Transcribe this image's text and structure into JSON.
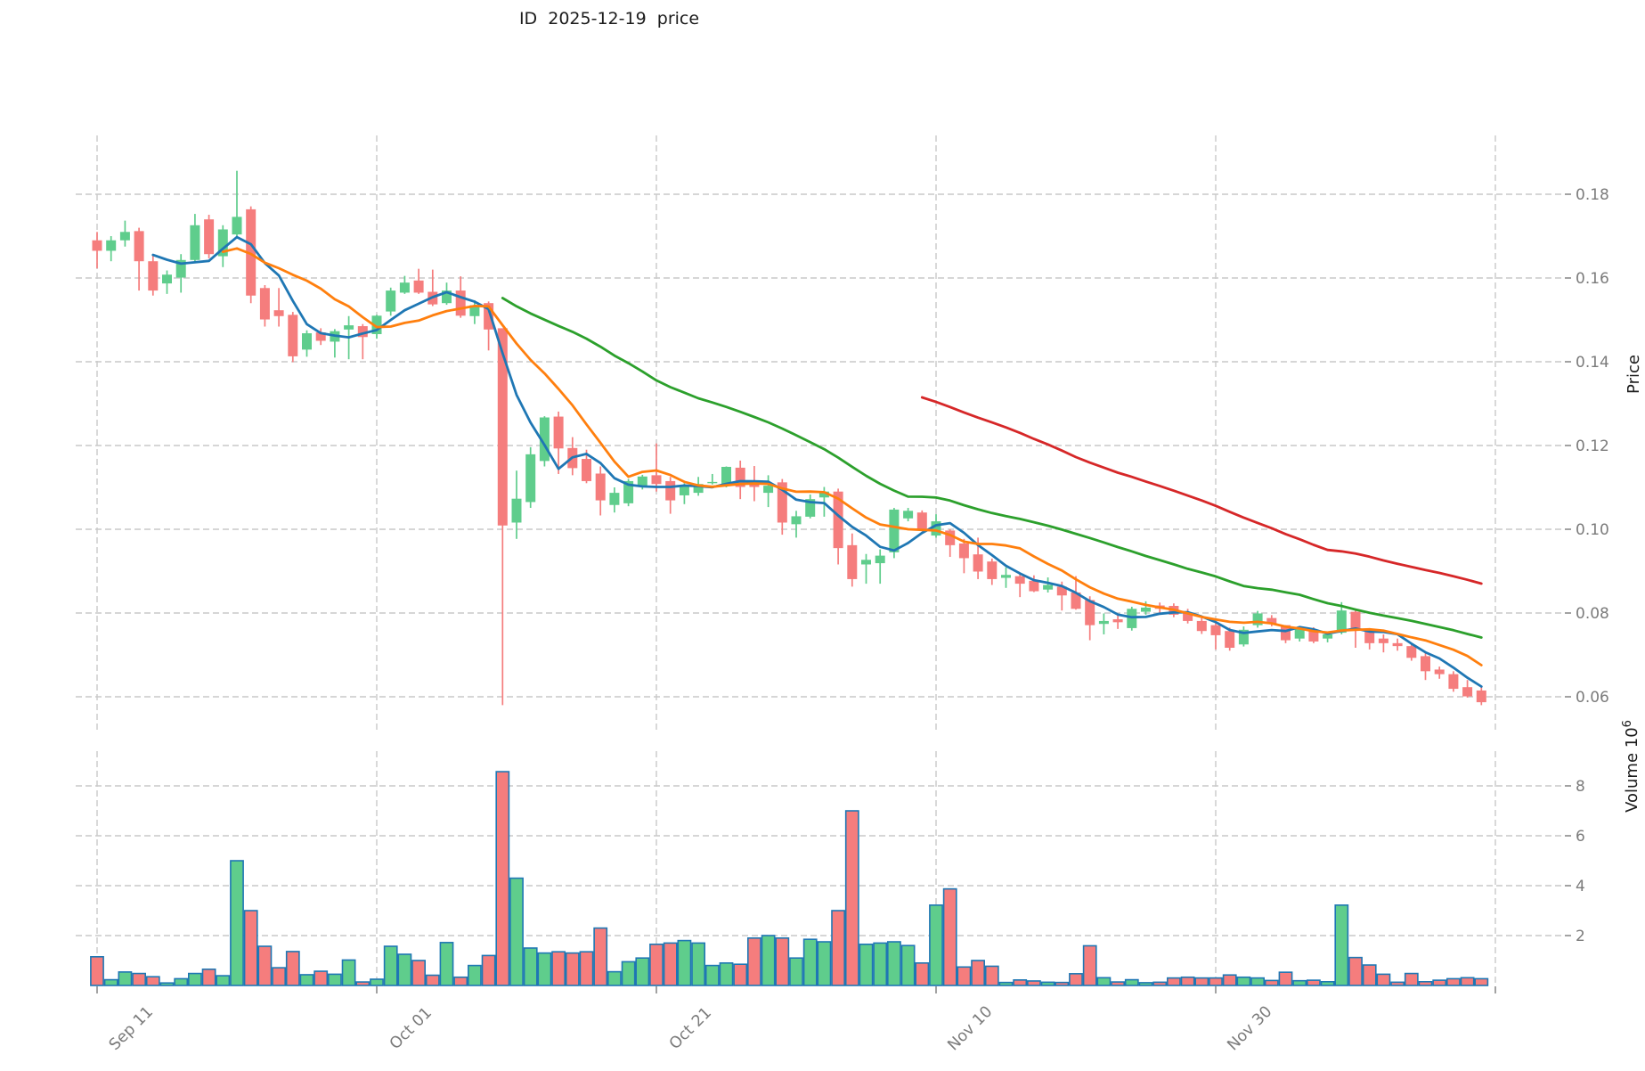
{
  "title": "ID  2025-12-19  price",
  "chart_data": {
    "type": "candlestick",
    "title": "ID  2025-12-19  price",
    "ylabel_price": "Price",
    "ylabel_volume": {
      "text": "Volume",
      "base": "10",
      "exponent": "6"
    },
    "price_ticks": [
      0.18,
      0.16,
      0.14,
      0.12,
      0.1,
      0.08,
      0.06
    ],
    "volume_ticks": [
      2,
      4,
      6,
      8
    ],
    "x_ticks": [
      {
        "index": 0,
        "label": "Sep 11"
      },
      {
        "index": 20,
        "label": "Oct 01"
      },
      {
        "index": 40,
        "label": "Oct 21"
      },
      {
        "index": 60,
        "label": "Nov 10"
      },
      {
        "index": 80,
        "label": "Nov 30"
      },
      {
        "index": 100,
        "label": ""
      }
    ],
    "grid": true,
    "legend_position": "none",
    "colors": {
      "up": "#5fcd8c",
      "down": "#f57d7d",
      "volume_edge": "#1f77b4",
      "grid": "#c9c9c9",
      "tick_label": "#7b7b7b",
      "text": "#1c1c1c"
    },
    "moving_averages": [
      {
        "name": "MA5",
        "window": 5,
        "color": "#1f77b4"
      },
      {
        "name": "MA10",
        "window": 10,
        "color": "#ff7f0e"
      },
      {
        "name": "MA30",
        "window": 30,
        "color": "#2ca02c"
      },
      {
        "name": "MA60",
        "window": 60,
        "color": "#d62728"
      }
    ],
    "price_range": [
      0.05,
      0.195
    ],
    "volume_range_millions": [
      0,
      9.4
    ],
    "dates": [
      "Sep 11",
      "Sep 12",
      "Sep 13",
      "Sep 14",
      "Sep 15",
      "Sep 16",
      "Sep 17",
      "Sep 18",
      "Sep 19",
      "Sep 20",
      "Sep 21",
      "Sep 22",
      "Sep 23",
      "Sep 24",
      "Sep 25",
      "Sep 26",
      "Sep 27",
      "Sep 28",
      "Sep 29",
      "Sep 30",
      "Oct 01",
      "Oct 02",
      "Oct 03",
      "Oct 04",
      "Oct 05",
      "Oct 06",
      "Oct 07",
      "Oct 08",
      "Oct 09",
      "Oct 10",
      "Oct 11",
      "Oct 12",
      "Oct 13",
      "Oct 14",
      "Oct 15",
      "Oct 16",
      "Oct 17",
      "Oct 18",
      "Oct 19",
      "Oct 20",
      "Oct 21",
      "Oct 22",
      "Oct 23",
      "Oct 24",
      "Oct 25",
      "Oct 26",
      "Oct 27",
      "Oct 28",
      "Oct 29",
      "Oct 30",
      "Oct 31",
      "Nov 01",
      "Nov 02",
      "Nov 03",
      "Nov 04",
      "Nov 05",
      "Nov 06",
      "Nov 07",
      "Nov 08",
      "Nov 09",
      "Nov 10",
      "Nov 11",
      "Nov 12",
      "Nov 13",
      "Nov 14",
      "Nov 15",
      "Nov 16",
      "Nov 17",
      "Nov 18",
      "Nov 19",
      "Nov 20",
      "Nov 21",
      "Nov 22",
      "Nov 23",
      "Nov 24",
      "Nov 25",
      "Nov 26",
      "Nov 27",
      "Nov 28",
      "Nov 29",
      "Nov 30",
      "Dec 01",
      "Dec 02",
      "Dec 03",
      "Dec 04",
      "Dec 05",
      "Dec 06",
      "Dec 07",
      "Dec 08",
      "Dec 09",
      "Dec 10",
      "Dec 11",
      "Dec 12",
      "Dec 13",
      "Dec 14",
      "Dec 15",
      "Dec 16",
      "Dec 17",
      "Dec 18",
      "Dec 19"
    ],
    "ohlcv": [
      [
        0.169,
        0.171,
        0.1623,
        0.1665,
        1.15
      ],
      [
        0.1665,
        0.17,
        0.164,
        0.169,
        0.23
      ],
      [
        0.169,
        0.1737,
        0.1675,
        0.171,
        0.54
      ],
      [
        0.1712,
        0.172,
        0.157,
        0.164,
        0.48
      ],
      [
        0.164,
        0.1654,
        0.1558,
        0.157,
        0.35
      ],
      [
        0.1587,
        0.1618,
        0.1562,
        0.1608,
        0.1
      ],
      [
        0.1601,
        0.1657,
        0.1565,
        0.1643,
        0.27
      ],
      [
        0.1643,
        0.1753,
        0.1636,
        0.1726,
        0.48
      ],
      [
        0.174,
        0.1751,
        0.1647,
        0.1657,
        0.65
      ],
      [
        0.1652,
        0.1726,
        0.1626,
        0.1716,
        0.39
      ],
      [
        0.1704,
        0.1856,
        0.1696,
        0.1746,
        5.0
      ],
      [
        0.1764,
        0.1771,
        0.154,
        0.1558,
        3.0
      ],
      [
        0.1576,
        0.1583,
        0.1484,
        0.1501,
        1.57
      ],
      [
        0.1523,
        0.1576,
        0.1484,
        0.1509,
        0.71
      ],
      [
        0.1512,
        0.1519,
        0.1399,
        0.1413,
        1.36
      ],
      [
        0.1429,
        0.1475,
        0.1412,
        0.1468,
        0.43
      ],
      [
        0.147,
        0.148,
        0.144,
        0.145,
        0.57
      ],
      [
        0.1448,
        0.1478,
        0.141,
        0.1473,
        0.45
      ],
      [
        0.1477,
        0.1509,
        0.1406,
        0.1487,
        1.02
      ],
      [
        0.1485,
        0.149,
        0.1406,
        0.1459,
        0.14
      ],
      [
        0.1466,
        0.1512,
        0.1455,
        0.151,
        0.25
      ],
      [
        0.152,
        0.1577,
        0.151,
        0.157,
        1.57
      ],
      [
        0.1565,
        0.1605,
        0.1562,
        0.1589,
        1.25
      ],
      [
        0.1594,
        0.1622,
        0.1562,
        0.1565,
        1.0
      ],
      [
        0.1567,
        0.162,
        0.1533,
        0.1537,
        0.41
      ],
      [
        0.154,
        0.1589,
        0.1536,
        0.157,
        1.72
      ],
      [
        0.157,
        0.1604,
        0.1505,
        0.151,
        0.33
      ],
      [
        0.1509,
        0.1547,
        0.149,
        0.1535,
        0.8
      ],
      [
        0.154,
        0.1544,
        0.1427,
        0.1477,
        1.2
      ],
      [
        0.148,
        0.148,
        0.058,
        0.1009,
        8.57
      ],
      [
        0.1016,
        0.114,
        0.0977,
        0.1073,
        4.3
      ],
      [
        0.1065,
        0.1196,
        0.1051,
        0.1179,
        1.5
      ],
      [
        0.1163,
        0.127,
        0.115,
        0.1267,
        1.3
      ],
      [
        0.1269,
        0.1281,
        0.1132,
        0.1193,
        1.35
      ],
      [
        0.1194,
        0.122,
        0.1129,
        0.1146,
        1.3
      ],
      [
        0.1168,
        0.119,
        0.111,
        0.1115,
        1.35
      ],
      [
        0.1133,
        0.115,
        0.1033,
        0.1069,
        2.3
      ],
      [
        0.1058,
        0.11,
        0.104,
        0.1087,
        0.55
      ],
      [
        0.1062,
        0.112,
        0.1055,
        0.1115,
        0.95
      ],
      [
        0.1104,
        0.113,
        0.1095,
        0.1126,
        1.1
      ],
      [
        0.1129,
        0.1205,
        0.109,
        0.1108,
        1.65
      ],
      [
        0.1115,
        0.1125,
        0.1037,
        0.1069,
        1.7
      ],
      [
        0.1081,
        0.111,
        0.106,
        0.1104,
        1.8
      ],
      [
        0.1087,
        0.1125,
        0.108,
        0.1108,
        1.7
      ],
      [
        0.111,
        0.1132,
        0.1107,
        0.1113,
        0.8
      ],
      [
        0.1104,
        0.115,
        0.11,
        0.1149,
        0.9
      ],
      [
        0.1147,
        0.1164,
        0.1072,
        0.1101,
        0.85
      ],
      [
        0.1115,
        0.1151,
        0.1067,
        0.1101,
        1.9
      ],
      [
        0.1087,
        0.1129,
        0.1053,
        0.1104,
        2.0
      ],
      [
        0.1112,
        0.112,
        0.0987,
        0.1016,
        1.9
      ],
      [
        0.1012,
        0.1044,
        0.098,
        0.1031,
        1.1
      ],
      [
        0.103,
        0.1083,
        0.1026,
        0.1072,
        1.85
      ],
      [
        0.1076,
        0.1101,
        0.103,
        0.109,
        1.75
      ],
      [
        0.109,
        0.1097,
        0.0916,
        0.0955,
        3.0
      ],
      [
        0.0962,
        0.099,
        0.0863,
        0.0881,
        7.0
      ],
      [
        0.0916,
        0.0941,
        0.087,
        0.0927,
        1.65
      ],
      [
        0.0919,
        0.0952,
        0.087,
        0.0937,
        1.7
      ],
      [
        0.0945,
        0.1051,
        0.0931,
        0.1047,
        1.75
      ],
      [
        0.1026,
        0.1051,
        0.1019,
        0.1044,
        1.6
      ],
      [
        0.104,
        0.1045,
        0.0995,
        0.1001,
        0.9
      ],
      [
        0.0985,
        0.1036,
        0.098,
        0.1019,
        3.22
      ],
      [
        0.0997,
        0.1,
        0.0934,
        0.0962,
        3.87
      ],
      [
        0.0966,
        0.0977,
        0.0895,
        0.0931,
        0.74
      ],
      [
        0.094,
        0.098,
        0.0881,
        0.0899,
        1.0
      ],
      [
        0.0923,
        0.093,
        0.0867,
        0.0881,
        0.77
      ],
      [
        0.0884,
        0.0909,
        0.086,
        0.0891,
        0.12
      ],
      [
        0.0888,
        0.0895,
        0.0838,
        0.087,
        0.22
      ],
      [
        0.0877,
        0.089,
        0.085,
        0.0852,
        0.18
      ],
      [
        0.0856,
        0.0885,
        0.0849,
        0.0867,
        0.13
      ],
      [
        0.0863,
        0.0875,
        0.0806,
        0.0842,
        0.12
      ],
      [
        0.0849,
        0.0888,
        0.0808,
        0.081,
        0.47
      ],
      [
        0.0831,
        0.084,
        0.0735,
        0.0771,
        1.59
      ],
      [
        0.0774,
        0.0799,
        0.0749,
        0.0781,
        0.31
      ],
      [
        0.0785,
        0.0795,
        0.0762,
        0.0778,
        0.14
      ],
      [
        0.0764,
        0.0815,
        0.0758,
        0.081,
        0.23
      ],
      [
        0.0803,
        0.0828,
        0.0796,
        0.0813,
        0.11
      ],
      [
        0.0818,
        0.0825,
        0.08,
        0.081,
        0.13
      ],
      [
        0.0817,
        0.0823,
        0.079,
        0.0796,
        0.3
      ],
      [
        0.0799,
        0.081,
        0.0775,
        0.0781,
        0.33
      ],
      [
        0.0781,
        0.0788,
        0.075,
        0.0757,
        0.3
      ],
      [
        0.0771,
        0.0778,
        0.0713,
        0.0747,
        0.3
      ],
      [
        0.0757,
        0.0765,
        0.071,
        0.0717,
        0.42
      ],
      [
        0.0725,
        0.0768,
        0.072,
        0.076,
        0.33
      ],
      [
        0.0771,
        0.0805,
        0.0765,
        0.0799,
        0.3
      ],
      [
        0.0788,
        0.0795,
        0.0768,
        0.0774,
        0.2
      ],
      [
        0.0771,
        0.0771,
        0.0728,
        0.0735,
        0.53
      ],
      [
        0.0739,
        0.0768,
        0.0732,
        0.0764,
        0.19
      ],
      [
        0.076,
        0.0766,
        0.0728,
        0.0732,
        0.21
      ],
      [
        0.0739,
        0.0755,
        0.073,
        0.0749,
        0.15
      ],
      [
        0.0753,
        0.0826,
        0.0749,
        0.0806,
        3.22
      ],
      [
        0.0803,
        0.081,
        0.0717,
        0.0764,
        1.12
      ],
      [
        0.0757,
        0.0764,
        0.0713,
        0.0728,
        0.82
      ],
      [
        0.0739,
        0.0749,
        0.0706,
        0.0728,
        0.45
      ],
      [
        0.0728,
        0.0739,
        0.071,
        0.0721,
        0.13
      ],
      [
        0.0721,
        0.0728,
        0.0686,
        0.0693,
        0.48
      ],
      [
        0.0697,
        0.0704,
        0.064,
        0.0661,
        0.15
      ],
      [
        0.0665,
        0.0672,
        0.0643,
        0.0654,
        0.21
      ],
      [
        0.0654,
        0.0661,
        0.0612,
        0.0619,
        0.27
      ],
      [
        0.0623,
        0.064,
        0.0598,
        0.0601,
        0.31
      ],
      [
        0.0615,
        0.0626,
        0.058,
        0.0587,
        0.27
      ]
    ]
  }
}
